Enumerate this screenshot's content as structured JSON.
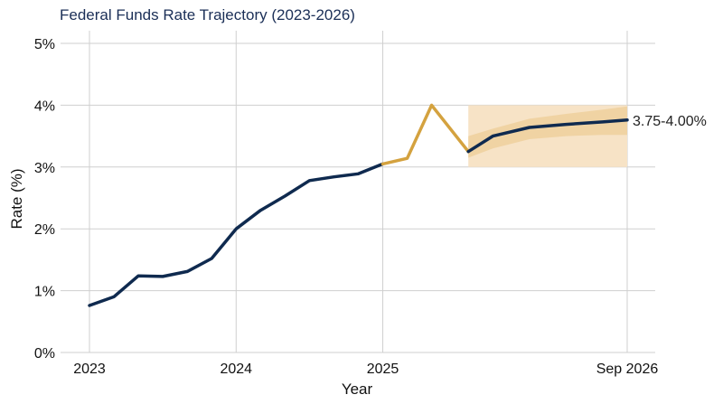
{
  "chart_data": {
    "type": "line",
    "title": "Federal Funds Rate Trajectory (2023-2026)",
    "xlabel": "Year",
    "ylabel": "Rate (%)",
    "ylim": [
      0,
      5
    ],
    "yticks": [
      0,
      1,
      2,
      3,
      4,
      5
    ],
    "ytick_labels": [
      "0%",
      "1%",
      "2%",
      "3%",
      "4%",
      "5%"
    ],
    "xticks": [
      {
        "x": "2023-01",
        "label": "2023"
      },
      {
        "x": "2024-01",
        "label": "2024"
      },
      {
        "x": "2025-01",
        "label": "2025"
      },
      {
        "x": "2026-09",
        "label": "Sep 2026"
      }
    ],
    "grid": true,
    "series": [
      {
        "color": "#0f2a4f",
        "x": [
          "2023-01",
          "2023-03",
          "2023-05",
          "2023-07",
          "2023-09",
          "2023-11",
          "2024-01",
          "2024-03",
          "2024-05",
          "2024-07",
          "2024-09",
          "2024-11",
          "2025-01"
        ],
        "values": [
          0.76,
          0.9,
          1.24,
          1.23,
          1.31,
          1.52,
          2.0,
          2.3,
          2.53,
          2.78,
          2.84,
          2.89,
          3.05
        ]
      },
      {
        "color": "#d4a23f",
        "x": [
          "2025-01",
          "2025-03",
          "2025-05",
          "2025-08"
        ],
        "values": [
          3.05,
          3.14,
          4.0,
          3.25
        ]
      },
      {
        "color": "#0f2a4f",
        "x": [
          "2025-08",
          "2025-10",
          "2026-01",
          "2026-04",
          "2026-07",
          "2026-09"
        ],
        "values": [
          3.25,
          3.5,
          3.64,
          3.69,
          3.73,
          3.76
        ]
      }
    ],
    "forecast_band": {
      "x_start": "2025-08",
      "x_end": "2026-09",
      "outer": [
        3.0,
        4.0
      ],
      "inner": {
        "x": [
          "2025-08",
          "2025-10",
          "2026-01",
          "2026-04",
          "2026-07",
          "2026-09"
        ],
        "low": [
          3.15,
          3.3,
          3.45,
          3.5,
          3.52,
          3.52
        ],
        "high": [
          3.5,
          3.62,
          3.78,
          3.86,
          3.93,
          3.98
        ]
      },
      "outer_color": "#f7e3c6",
      "inner_color": "#efd09c"
    },
    "annotation": "3.75-4.00%"
  }
}
